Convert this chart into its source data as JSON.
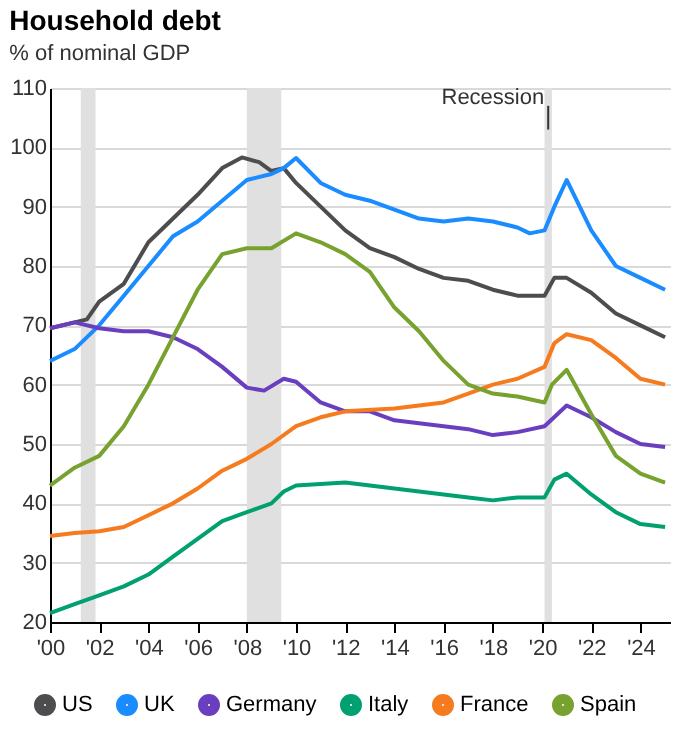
{
  "chart_data": {
    "type": "line",
    "title": "Household debt",
    "subtitle": "% of nominal GDP",
    "xlim": [
      2000,
      2025.2
    ],
    "ylim": [
      20,
      110
    ],
    "xticks": [
      {
        "value": 2000,
        "label": "'00"
      },
      {
        "value": 2002,
        "label": "'02"
      },
      {
        "value": 2004,
        "label": "'04"
      },
      {
        "value": 2006,
        "label": "'06"
      },
      {
        "value": 2008,
        "label": "'08"
      },
      {
        "value": 2010,
        "label": "'10"
      },
      {
        "value": 2012,
        "label": "'12"
      },
      {
        "value": 2014,
        "label": "'14"
      },
      {
        "value": 2016,
        "label": "'16"
      },
      {
        "value": 2018,
        "label": "'18"
      },
      {
        "value": 2020,
        "label": "'20"
      },
      {
        "value": 2022,
        "label": "'22"
      },
      {
        "value": 2024,
        "label": "'24"
      }
    ],
    "yticks": [
      20,
      30,
      40,
      50,
      60,
      70,
      80,
      90,
      100,
      110
    ],
    "grid": "y",
    "legend": "bottom",
    "line_style": "solid",
    "bands": [
      {
        "axis": "x",
        "from": 2001.25,
        "to": 2001.85,
        "color": "#e0e0e0"
      },
      {
        "axis": "x",
        "from": 2008.0,
        "to": 2009.4,
        "color": "#e0e0e0"
      },
      {
        "axis": "x",
        "from": 2020.1,
        "to": 2020.4,
        "color": "#e0e0e0"
      }
    ],
    "annotations": [
      {
        "text": "Recession",
        "x": 2020.25,
        "y": 107
      }
    ],
    "series": [
      {
        "name": "US",
        "color": "#4d4d4f",
        "x": [
          2000,
          2001,
          2001.5,
          2002,
          2003,
          2004,
          2005,
          2006,
          2007,
          2007.8,
          2008.5,
          2009,
          2009.5,
          2010,
          2011,
          2012,
          2013,
          2014,
          2015,
          2016,
          2017,
          2018,
          2019,
          2020.1,
          2020.5,
          2021,
          2022,
          2023,
          2024,
          2025
        ],
        "values": [
          69.5,
          70.5,
          71,
          74,
          77,
          84,
          88,
          92,
          96.5,
          98.3,
          97.5,
          96,
          96.5,
          94,
          90,
          86,
          83,
          81.5,
          79.5,
          78,
          77.5,
          76,
          75,
          75,
          78,
          78,
          75.5,
          72,
          70,
          68
        ]
      },
      {
        "name": "UK",
        "color": "#1a8cff",
        "x": [
          2000,
          2001,
          2002,
          2003,
          2004,
          2005,
          2006,
          2007,
          2008,
          2009,
          2009.5,
          2010,
          2011,
          2012,
          2013,
          2014,
          2015,
          2016,
          2017,
          2018,
          2019,
          2019.5,
          2020.1,
          2020.5,
          2021,
          2022,
          2023,
          2024,
          2025
        ],
        "values": [
          64,
          66,
          70,
          75,
          80,
          85,
          87.5,
          91,
          94.5,
          95.5,
          96.5,
          98.2,
          94,
          92,
          91,
          89.5,
          88,
          87.5,
          88,
          87.5,
          86.5,
          85.5,
          86,
          90,
          94.5,
          86,
          80,
          78,
          76
        ]
      },
      {
        "name": "Germany",
        "color": "#6a3fbf",
        "x": [
          2000,
          2001,
          2002,
          2003,
          2004,
          2005,
          2006,
          2007,
          2008,
          2008.7,
          2009.5,
          2010,
          2011,
          2012,
          2013,
          2014,
          2015,
          2016,
          2017,
          2018,
          2019,
          2020.1,
          2021,
          2022,
          2023,
          2024,
          2025
        ],
        "values": [
          69.5,
          70.5,
          69.5,
          69,
          69,
          68,
          66,
          63,
          59.5,
          59,
          61,
          60.5,
          57,
          55.5,
          55.5,
          54,
          53.5,
          53,
          52.5,
          51.5,
          52,
          53,
          56.5,
          54.5,
          52,
          50,
          49.5
        ]
      },
      {
        "name": "Italy",
        "color": "#00a070",
        "x": [
          2000,
          2001,
          2002,
          2003,
          2004,
          2005,
          2006,
          2007,
          2008,
          2009,
          2009.5,
          2010,
          2012,
          2013,
          2014,
          2015,
          2016,
          2017,
          2018,
          2019,
          2020.1,
          2020.5,
          2021,
          2022,
          2023,
          2024,
          2025
        ],
        "values": [
          21.5,
          23,
          24.5,
          26,
          28,
          31,
          34,
          37,
          38.5,
          40,
          42,
          43,
          43.5,
          43,
          42.5,
          42,
          41.5,
          41,
          40.5,
          41,
          41,
          44,
          45,
          41.5,
          38.5,
          36.5,
          36
        ]
      },
      {
        "name": "France",
        "color": "#f57b1e",
        "x": [
          2000,
          2001,
          2002,
          2003,
          2004,
          2005,
          2006,
          2007,
          2008,
          2009,
          2010,
          2011,
          2012,
          2014,
          2015,
          2016,
          2017,
          2018,
          2019,
          2020.1,
          2020.5,
          2021,
          2022,
          2023,
          2024,
          2025
        ],
        "values": [
          34.5,
          35,
          35.3,
          36,
          38,
          40,
          42.5,
          45.5,
          47.5,
          50,
          53,
          54.5,
          55.5,
          56,
          56.5,
          57,
          58.5,
          60,
          61,
          63,
          67,
          68.5,
          67.5,
          64.5,
          61,
          60
        ]
      },
      {
        "name": "Spain",
        "color": "#78a22f",
        "x": [
          2000,
          2001,
          2002,
          2003,
          2004,
          2005,
          2006,
          2007,
          2008,
          2009,
          2010,
          2011,
          2012,
          2013,
          2014,
          2015,
          2016,
          2017,
          2018,
          2019,
          2020.1,
          2020.4,
          2021,
          2022,
          2023,
          2024,
          2025
        ],
        "values": [
          43,
          46,
          48,
          53,
          60,
          68,
          76,
          82,
          83,
          83,
          85.5,
          84,
          82,
          79,
          73,
          69,
          64,
          60,
          58.5,
          58,
          57,
          60,
          62.5,
          55,
          48,
          45,
          43.5
        ]
      }
    ]
  }
}
